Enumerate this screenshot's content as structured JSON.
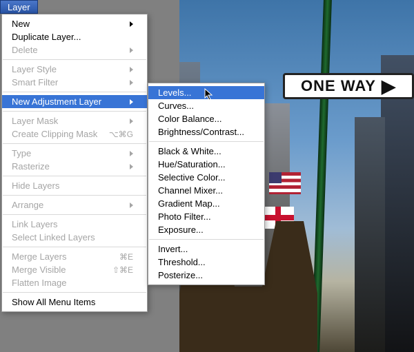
{
  "menubar": {
    "label": "Layer"
  },
  "menu": {
    "items": [
      {
        "label": "New",
        "sub": true
      },
      {
        "label": "Duplicate Layer..."
      },
      {
        "label": "Delete",
        "disabled": true,
        "sub": true
      },
      {
        "sep": true
      },
      {
        "label": "Layer Style",
        "disabled": true,
        "sub": true
      },
      {
        "label": "Smart Filter",
        "disabled": true,
        "sub": true
      },
      {
        "sep": true
      },
      {
        "label": "New Adjustment Layer",
        "sub": true,
        "highlight": true
      },
      {
        "sep": true
      },
      {
        "label": "Layer Mask",
        "disabled": true,
        "sub": true
      },
      {
        "label": "Create Clipping Mask",
        "disabled": true,
        "shortcut": "⌥⌘G"
      },
      {
        "sep": true
      },
      {
        "label": "Type",
        "disabled": true,
        "sub": true
      },
      {
        "label": "Rasterize",
        "disabled": true,
        "sub": true
      },
      {
        "sep": true
      },
      {
        "label": "Hide Layers",
        "disabled": true
      },
      {
        "sep": true
      },
      {
        "label": "Arrange",
        "disabled": true,
        "sub": true
      },
      {
        "sep": true
      },
      {
        "label": "Link Layers",
        "disabled": true
      },
      {
        "label": "Select Linked Layers",
        "disabled": true
      },
      {
        "sep": true
      },
      {
        "label": "Merge Layers",
        "disabled": true,
        "shortcut": "⌘E"
      },
      {
        "label": "Merge Visible",
        "disabled": true,
        "shortcut": "⇧⌘E"
      },
      {
        "label": "Flatten Image",
        "disabled": true
      },
      {
        "sep": true
      },
      {
        "label": "Show All Menu Items"
      }
    ]
  },
  "submenu": {
    "items": [
      {
        "label": "Levels...",
        "highlight": true
      },
      {
        "label": "Curves..."
      },
      {
        "label": "Color Balance..."
      },
      {
        "label": "Brightness/Contrast..."
      },
      {
        "sep": true
      },
      {
        "label": "Black & White..."
      },
      {
        "label": "Hue/Saturation..."
      },
      {
        "label": "Selective Color..."
      },
      {
        "label": "Channel Mixer..."
      },
      {
        "label": "Gradient Map..."
      },
      {
        "label": "Photo Filter..."
      },
      {
        "label": "Exposure..."
      },
      {
        "sep": true
      },
      {
        "label": "Invert..."
      },
      {
        "label": "Threshold..."
      },
      {
        "label": "Posterize..."
      }
    ]
  },
  "sign": {
    "text": "ONE WAY"
  }
}
